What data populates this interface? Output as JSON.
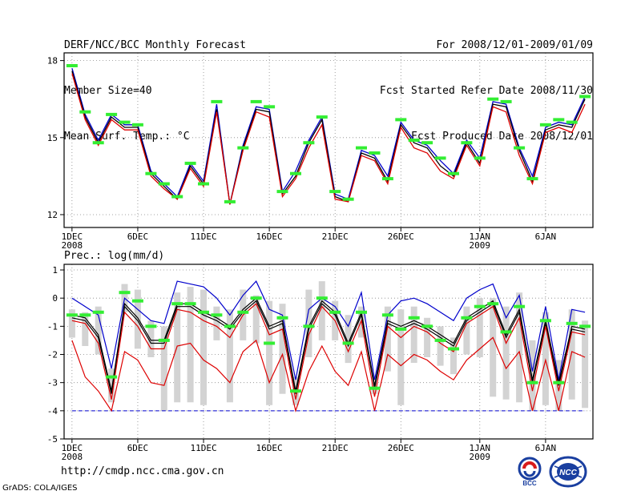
{
  "header": {
    "title": "DERF/NCC/BCC Monthly Forecast",
    "member_size": "Member Size=40",
    "variable": "Mean Surf. Temp.: °C",
    "period": "For 2008/12/01-2009/01/09",
    "start_date": "Fcst Started Refer Date 2008/11/30",
    "produced_date": "Fcst Produced Date 2008/12/01"
  },
  "footer": {
    "url": "http://cmdp.ncc.cma.gov.cn",
    "credit": "GrADS: COLA/IGES",
    "logo_bcc_text": "BCC",
    "logo_ncc_text": "NCC"
  },
  "colors": {
    "ensemble_mean": "#000000",
    "upper": "#0000cc",
    "lower": "#dd0000",
    "marker": "#33ee33",
    "spread_bar": "#d3d3d3",
    "baseline": "#0000cc"
  },
  "chart_data": [
    {
      "type": "line",
      "title": "Mean Surf. Temp.: °C",
      "x": [
        1,
        2,
        3,
        4,
        5,
        6,
        7,
        8,
        9,
        10,
        11,
        12,
        13,
        14,
        15,
        16,
        17,
        18,
        19,
        20,
        21,
        22,
        23,
        24,
        25,
        26,
        27,
        28,
        29,
        30,
        31,
        32,
        33,
        34,
        35,
        36,
        37,
        38,
        39,
        40
      ],
      "x_tick_labels": [
        {
          "day": 1,
          "label": "1DEC",
          "sub": "2008"
        },
        {
          "day": 6,
          "label": "6DEC",
          "sub": ""
        },
        {
          "day": 11,
          "label": "11DEC",
          "sub": ""
        },
        {
          "day": 16,
          "label": "16DEC",
          "sub": ""
        },
        {
          "day": 21,
          "label": "21DEC",
          "sub": ""
        },
        {
          "day": 26,
          "label": "26DEC",
          "sub": ""
        },
        {
          "day": 32,
          "label": "1JAN",
          "sub": "2009"
        },
        {
          "day": 37,
          "label": "6JAN",
          "sub": ""
        }
      ],
      "yticks": [
        12,
        15,
        18
      ],
      "ylim": [
        11.5,
        18.3
      ],
      "xlim": [
        0.4,
        40.6
      ],
      "series": [
        {
          "name": "upper",
          "values": [
            17.7,
            15.9,
            14.9,
            15.9,
            15.5,
            15.5,
            13.7,
            13.2,
            12.7,
            14.0,
            13.3,
            16.3,
            12.4,
            14.7,
            16.2,
            16.1,
            12.9,
            13.7,
            14.9,
            15.8,
            12.8,
            12.6,
            14.5,
            14.3,
            13.5,
            15.6,
            14.9,
            14.7,
            14.1,
            13.6,
            14.9,
            14.2,
            16.4,
            16.3,
            14.6,
            13.5,
            15.4,
            15.6,
            15.5,
            16.6
          ]
        },
        {
          "name": "mean",
          "values": [
            17.6,
            15.8,
            14.8,
            15.8,
            15.4,
            15.4,
            13.6,
            13.1,
            12.6,
            13.9,
            13.2,
            16.1,
            12.4,
            14.6,
            16.1,
            16.0,
            12.8,
            13.5,
            14.8,
            15.7,
            12.7,
            12.5,
            14.4,
            14.2,
            13.3,
            15.5,
            14.8,
            14.6,
            13.9,
            13.5,
            14.8,
            14.0,
            16.3,
            16.2,
            14.5,
            13.3,
            15.3,
            15.5,
            15.4,
            16.5
          ]
        },
        {
          "name": "lower",
          "values": [
            17.5,
            15.7,
            14.7,
            15.7,
            15.3,
            15.3,
            13.5,
            13.0,
            12.6,
            13.8,
            13.1,
            16.0,
            12.4,
            14.5,
            16.0,
            15.8,
            12.7,
            13.4,
            14.6,
            15.5,
            12.6,
            12.5,
            14.3,
            14.1,
            13.2,
            15.4,
            14.6,
            14.4,
            13.7,
            13.4,
            14.7,
            13.9,
            16.2,
            16.0,
            14.3,
            13.2,
            15.2,
            15.4,
            15.2,
            16.3
          ]
        }
      ],
      "markers": [
        17.8,
        16.0,
        14.8,
        15.9,
        15.6,
        15.5,
        13.6,
        13.2,
        12.7,
        14.0,
        13.2,
        16.4,
        12.5,
        14.6,
        16.4,
        16.2,
        12.9,
        13.6,
        14.8,
        15.8,
        12.9,
        12.6,
        14.6,
        14.4,
        13.4,
        15.7,
        14.9,
        14.8,
        14.2,
        13.6,
        14.8,
        14.2,
        16.5,
        16.4,
        14.6,
        13.4,
        15.5,
        15.7,
        15.6,
        16.6
      ]
    },
    {
      "type": "line",
      "title": "Prec.: log(mm/d)",
      "x": [
        1,
        2,
        3,
        4,
        5,
        6,
        7,
        8,
        9,
        10,
        11,
        12,
        13,
        14,
        15,
        16,
        17,
        18,
        19,
        20,
        21,
        22,
        23,
        24,
        25,
        26,
        27,
        28,
        29,
        30,
        31,
        32,
        33,
        34,
        35,
        36,
        37,
        38,
        39,
        40
      ],
      "yticks": [
        -5,
        -4,
        -3,
        -2,
        -1,
        0,
        1
      ],
      "ylim": [
        -5,
        1.2
      ],
      "xlim": [
        0.4,
        40.6
      ],
      "baseline": -4,
      "series": [
        {
          "name": "upper",
          "values": [
            0.0,
            -0.3,
            -0.6,
            -2.5,
            0.0,
            -0.4,
            -0.8,
            -0.9,
            0.6,
            0.5,
            0.4,
            0.0,
            -0.6,
            0.1,
            0.6,
            -0.4,
            -0.6,
            -2.9,
            -0.4,
            0.0,
            -0.3,
            -1.0,
            0.2,
            -2.9,
            -0.6,
            -0.1,
            0.0,
            -0.2,
            -0.5,
            -0.8,
            0.0,
            0.3,
            0.5,
            -0.7,
            0.1,
            -2.6,
            -0.3,
            -2.9,
            -0.4,
            -0.5
          ]
        },
        {
          "name": "mean",
          "values": [
            -0.6,
            -0.7,
            -1.3,
            -3.3,
            -0.2,
            -0.7,
            -1.5,
            -1.5,
            -0.2,
            -0.2,
            -0.5,
            -0.7,
            -1.0,
            -0.4,
            0.0,
            -1.0,
            -0.8,
            -3.3,
            -1.0,
            -0.1,
            -0.5,
            -1.6,
            -0.5,
            -3.1,
            -0.8,
            -1.0,
            -0.8,
            -1.0,
            -1.3,
            -1.6,
            -0.7,
            -0.4,
            -0.1,
            -1.3,
            -0.4,
            -2.9,
            -0.8,
            -3.0,
            -1.0,
            -1.1
          ]
        },
        {
          "name": "mean2",
          "values": [
            -0.7,
            -0.8,
            -1.4,
            -3.4,
            -0.3,
            -0.8,
            -1.6,
            -1.6,
            -0.3,
            -0.3,
            -0.6,
            -0.8,
            -1.1,
            -0.5,
            -0.1,
            -1.1,
            -0.9,
            -3.4,
            -1.1,
            -0.2,
            -0.6,
            -1.7,
            -0.6,
            -3.2,
            -0.9,
            -1.1,
            -0.9,
            -1.1,
            -1.4,
            -1.7,
            -0.8,
            -0.5,
            -0.2,
            -1.4,
            -0.5,
            -3.0,
            -0.9,
            -3.1,
            -1.1,
            -1.2
          ]
        },
        {
          "name": "lower_inner",
          "values": [
            -0.8,
            -0.9,
            -1.6,
            -3.6,
            -0.5,
            -1.0,
            -1.8,
            -1.8,
            -0.4,
            -0.5,
            -0.8,
            -1.0,
            -1.4,
            -0.6,
            -0.2,
            -1.3,
            -1.1,
            -3.6,
            -1.3,
            -0.3,
            -0.8,
            -1.9,
            -0.8,
            -3.5,
            -1.0,
            -1.4,
            -1.0,
            -1.2,
            -1.6,
            -1.9,
            -0.9,
            -0.6,
            -0.3,
            -1.6,
            -0.7,
            -3.3,
            -1.0,
            -3.3,
            -1.2,
            -1.3
          ]
        },
        {
          "name": "lower",
          "values": [
            -1.5,
            -2.8,
            -3.3,
            -4.0,
            -1.9,
            -2.2,
            -3.0,
            -3.1,
            -1.7,
            -1.6,
            -2.2,
            -2.5,
            -3.0,
            -1.9,
            -1.5,
            -3.0,
            -2.0,
            -4.0,
            -2.6,
            -1.7,
            -2.6,
            -3.1,
            -1.9,
            -4.0,
            -2.0,
            -2.4,
            -2.0,
            -2.2,
            -2.6,
            -2.9,
            -2.2,
            -1.8,
            -1.4,
            -2.5,
            -1.9,
            -4.0,
            -2.2,
            -4.0,
            -1.9,
            -2.1
          ]
        }
      ],
      "spread_bars": [
        [
          -1.4,
          -0.4
        ],
        [
          -1.7,
          -0.5
        ],
        [
          -2.0,
          -0.3
        ],
        [
          -3.7,
          -2.5
        ],
        [
          -0.5,
          0.5
        ],
        [
          -1.8,
          0.3
        ],
        [
          -2.1,
          -0.8
        ],
        [
          -4.0,
          -1.0
        ],
        [
          -3.7,
          0.2
        ],
        [
          -3.7,
          0.4
        ],
        [
          -3.8,
          0.3
        ],
        [
          -1.5,
          -0.3
        ],
        [
          -3.7,
          -0.4
        ],
        [
          -1.5,
          0.3
        ],
        [
          -1.6,
          0.1
        ],
        [
          -3.8,
          -0.1
        ],
        [
          -3.4,
          -0.2
        ],
        [
          -3.8,
          -2.8
        ],
        [
          -2.1,
          0.3
        ],
        [
          -1.5,
          0.6
        ],
        [
          -1.5,
          -0.1
        ],
        [
          -2.3,
          -0.6
        ],
        [
          -1.4,
          -0.3
        ],
        [
          -3.4,
          -3.0
        ],
        [
          -2.6,
          -0.3
        ],
        [
          -3.8,
          -0.4
        ],
        [
          -2.3,
          -0.3
        ],
        [
          -2.1,
          -0.7
        ],
        [
          -2.4,
          -1.0
        ],
        [
          -2.7,
          -1.4
        ],
        [
          -2.0,
          -0.3
        ],
        [
          -2.1,
          0.0
        ],
        [
          -3.5,
          0.0
        ],
        [
          -3.6,
          -0.3
        ],
        [
          -3.7,
          0.2
        ],
        [
          -4.0,
          -1.5
        ],
        [
          -3.8,
          -0.5
        ],
        [
          -4.0,
          -2.2
        ],
        [
          -3.6,
          -0.4
        ],
        [
          -3.9,
          -0.8
        ]
      ],
      "markers": [
        -0.6,
        -0.6,
        -0.5,
        -2.8,
        0.2,
        -0.1,
        -1.0,
        -1.5,
        -0.2,
        -0.2,
        -0.5,
        -0.6,
        -1.0,
        -0.5,
        0.0,
        -1.6,
        -0.7,
        -3.3,
        -1.0,
        0.0,
        -0.5,
        -1.6,
        -0.5,
        -3.2,
        -0.6,
        -1.1,
        -0.7,
        -1.0,
        -1.5,
        -1.8,
        -0.7,
        -0.3,
        -0.2,
        -1.2,
        -0.3,
        -3.0,
        -0.8,
        -3.0,
        -0.9,
        -1.0
      ]
    }
  ]
}
